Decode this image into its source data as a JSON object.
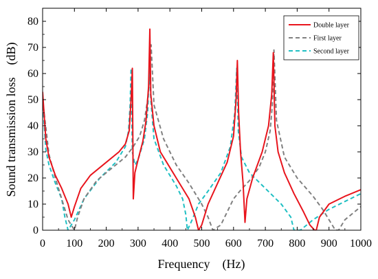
{
  "chart_data": {
    "type": "line",
    "title": "",
    "xlabel": "Frequency　(Hz)",
    "ylabel": "Sound transmission loss　(dB)",
    "xlim": [
      0,
      1000
    ],
    "ylim": [
      0,
      85
    ],
    "xticks": [
      "0",
      "100",
      "200",
      "300",
      "400",
      "500",
      "600",
      "700",
      "800",
      "900",
      "1000"
    ],
    "yticks": [
      "0",
      "10",
      "20",
      "30",
      "40",
      "50",
      "60",
      "70",
      "80"
    ],
    "grid": false,
    "legend_position": "top-right",
    "series": [
      {
        "name": "Double layer",
        "color": "#e8141c",
        "dash": "solid",
        "x": [
          0,
          10,
          20,
          40,
          60,
          80,
          90,
          100,
          120,
          150,
          200,
          240,
          260,
          272,
          278,
          282,
          285,
          290,
          300,
          315,
          325,
          333,
          337,
          340,
          350,
          370,
          400,
          430,
          460,
          480,
          490,
          500,
          520,
          550,
          580,
          600,
          608,
          612,
          616,
          622,
          630,
          636,
          642,
          660,
          690,
          710,
          720,
          725,
          730,
          740,
          760,
          790,
          820,
          840,
          855,
          860,
          870,
          900,
          950,
          1000
        ],
        "y": [
          53,
          35,
          28,
          21,
          16,
          10,
          5,
          9,
          16,
          21,
          26,
          30,
          33,
          38,
          50,
          62,
          12,
          22,
          27,
          34,
          42,
          55,
          77,
          52,
          40,
          30,
          24,
          18,
          12,
          5,
          0,
          2,
          10,
          18,
          26,
          36,
          50,
          65,
          45,
          30,
          18,
          3,
          12,
          20,
          30,
          40,
          52,
          68,
          40,
          30,
          22,
          14,
          7,
          2,
          0,
          0,
          5,
          10,
          13,
          15.5
        ]
      },
      {
        "name": "First layer",
        "color": "#808080",
        "dash": "dashed",
        "x": [
          0,
          20,
          40,
          60,
          80,
          100,
          110,
          130,
          170,
          220,
          260,
          285,
          305,
          320,
          330,
          336,
          341,
          350,
          380,
          420,
          460,
          500,
          520,
          535,
          560,
          580,
          600,
          620,
          650,
          680,
          700,
          715,
          722,
          727,
          735,
          760,
          800,
          850,
          880,
          900,
          920,
          930,
          950,
          1000
        ],
        "y": [
          50,
          29,
          20,
          12,
          4,
          0,
          5,
          12,
          19,
          24,
          28,
          32,
          36,
          42,
          50,
          58,
          71,
          48,
          35,
          25,
          18,
          10,
          5,
          0,
          2,
          7,
          12,
          15,
          19,
          24,
          30,
          38,
          48,
          69,
          42,
          28,
          20,
          13,
          8,
          4,
          0,
          0,
          4,
          9
        ]
      },
      {
        "name": "Second layer",
        "color": "#1fbfc3",
        "dash": "dashed",
        "x": [
          0,
          10,
          20,
          40,
          60,
          70,
          80,
          100,
          130,
          180,
          230,
          260,
          270,
          275,
          278,
          282,
          290,
          300,
          320,
          330,
          336,
          340,
          350,
          380,
          420,
          440,
          450,
          455,
          470,
          490,
          520,
          560,
          590,
          604,
          610,
          615,
          625,
          650,
          700,
          750,
          780,
          790,
          800,
          810,
          850,
          900,
          950,
          1000
        ],
        "y": [
          50,
          31,
          25,
          18,
          12,
          5,
          0,
          4,
          12,
          20,
          26,
          32,
          38,
          48,
          62,
          30,
          25,
          27,
          35,
          45,
          62,
          50,
          35,
          25,
          17,
          12,
          6,
          0,
          4,
          10,
          15,
          22,
          32,
          45,
          62,
          38,
          28,
          22,
          16,
          10,
          5,
          0,
          0,
          0,
          4,
          8,
          11,
          14
        ]
      }
    ]
  }
}
